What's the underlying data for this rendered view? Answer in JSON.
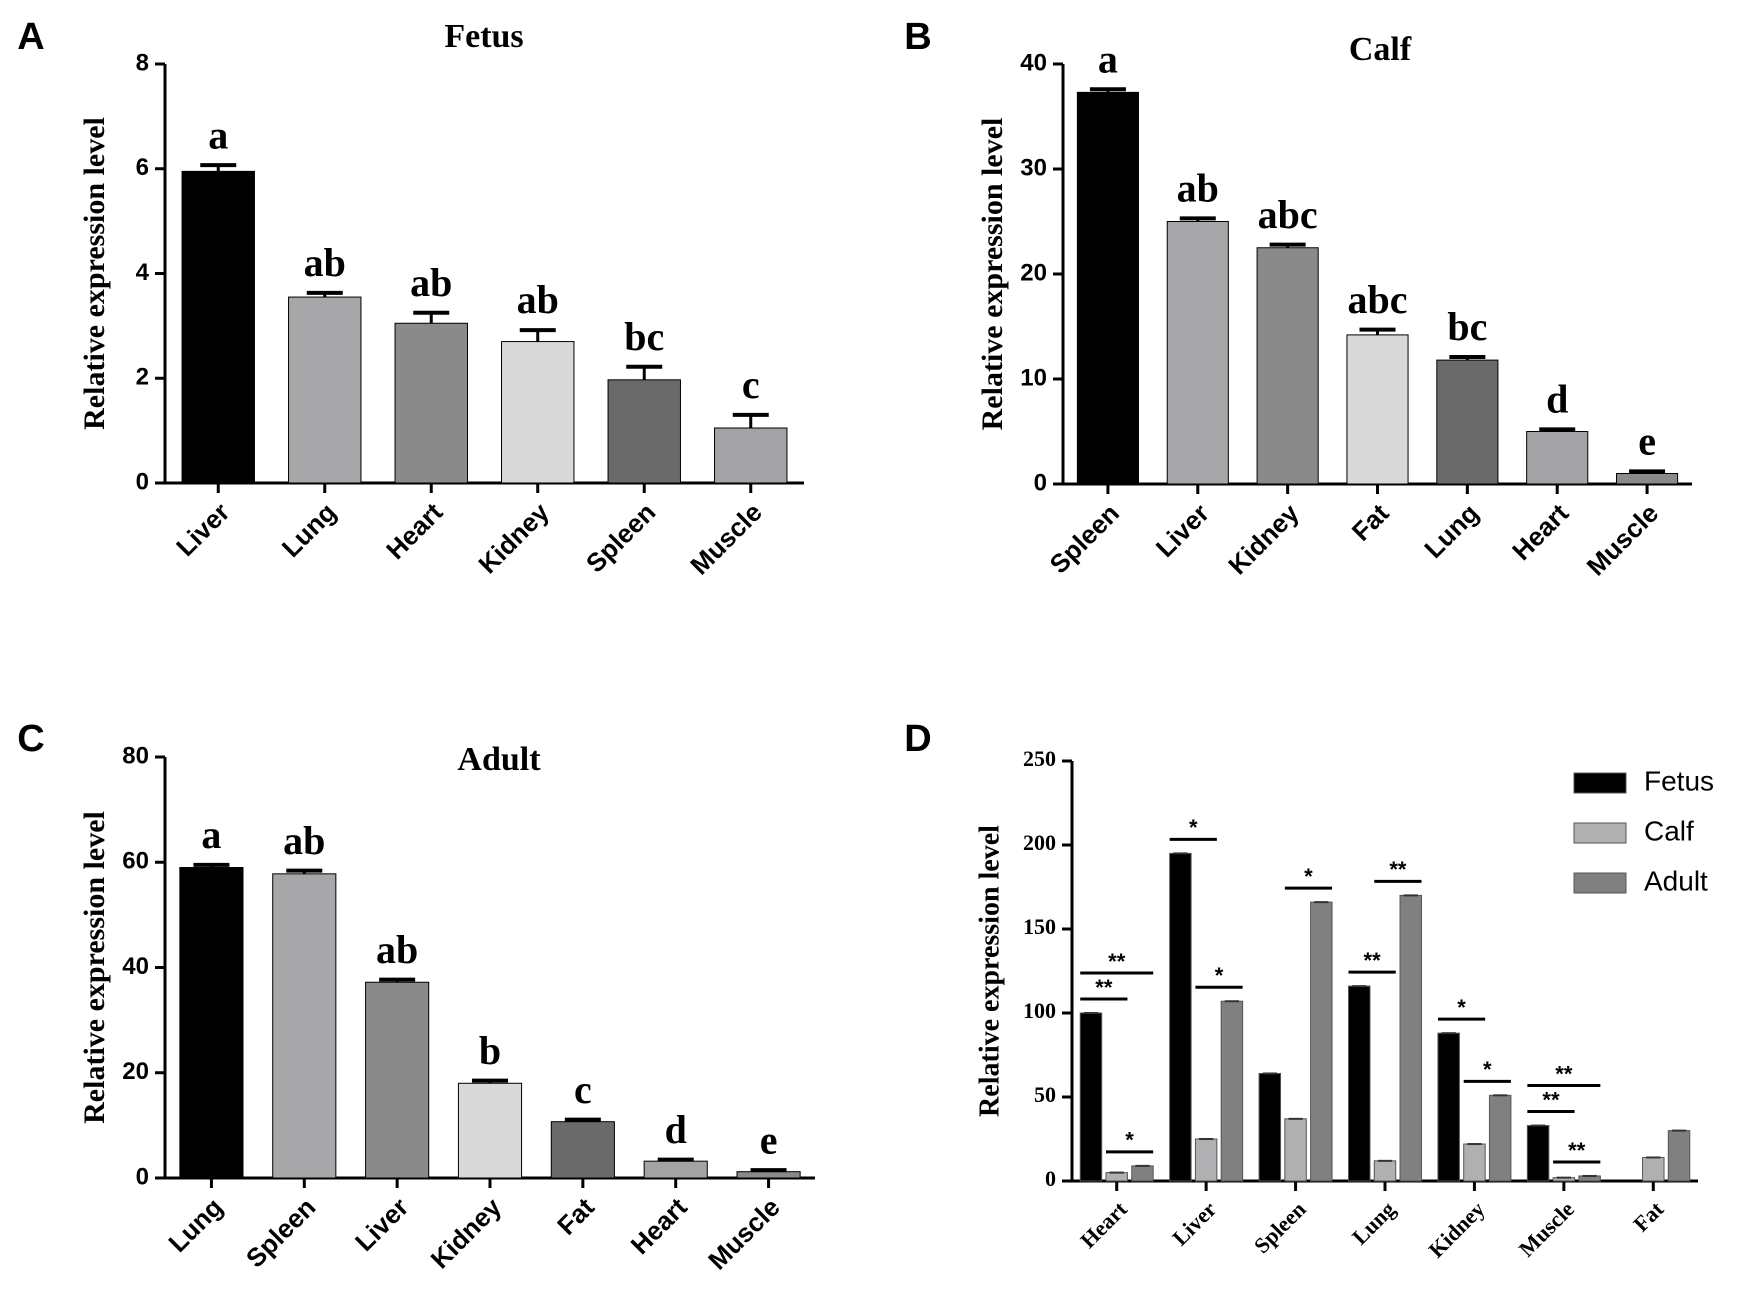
{
  "chart_data": [
    {
      "type": "bar",
      "panel": "A",
      "title": "Fetus",
      "ylabel": "Relative expression level",
      "categories": [
        "Liver",
        "Lung",
        "Heart",
        "Kidney",
        "Spleen",
        "Muscle"
      ],
      "values": [
        5.95,
        3.55,
        3.05,
        2.7,
        1.97,
        1.05
      ],
      "errors": [
        0.12,
        0.08,
        0.2,
        0.22,
        0.25,
        0.25
      ],
      "letters": [
        "a",
        "ab",
        "ab",
        "ab",
        "bc",
        "c"
      ],
      "colors": [
        "#000000",
        "#a7a7aa",
        "#8a8a8a",
        "#d9d9d9",
        "#6a6a6a",
        "#a3a3a6"
      ],
      "ylim": [
        0,
        8
      ],
      "yticks": [
        0,
        2,
        4,
        6,
        8
      ]
    },
    {
      "type": "bar",
      "panel": "B",
      "title": "Calf",
      "ylabel": "Relative expression level",
      "categories": [
        "Spleen",
        "Liver",
        "Kidney",
        "Fat",
        "Lung",
        "Heart",
        "Muscle"
      ],
      "values": [
        37.3,
        25,
        22.5,
        14.2,
        11.8,
        5,
        1
      ],
      "errors": [
        0.3,
        0.3,
        0.3,
        0.5,
        0.3,
        0.2,
        0.2
      ],
      "letters": [
        "a",
        "ab",
        "abc",
        "abc",
        "bc",
        "d",
        "e"
      ],
      "colors": [
        "#000000",
        "#a7a7aa",
        "#8a8a8a",
        "#d9d9d9",
        "#6a6a6a",
        "#a3a3a6",
        "#8a8a8a"
      ],
      "ylim": [
        0,
        40
      ],
      "yticks": [
        0,
        10,
        20,
        30,
        40
      ]
    },
    {
      "type": "bar",
      "panel": "C",
      "title": "Adult",
      "ylabel": "Relative expression level",
      "categories": [
        "Lung",
        "Spleen",
        "Liver",
        "Kidney",
        "Fat",
        "Heart",
        "Muscle"
      ],
      "values": [
        59,
        57.8,
        37.2,
        18,
        10.7,
        3.2,
        1.2
      ],
      "errors": [
        0.5,
        0.6,
        0.5,
        0.5,
        0.4,
        0.3,
        0.3
      ],
      "letters": [
        "a",
        "ab",
        "ab",
        "b",
        "c",
        "d",
        "e"
      ],
      "colors": [
        "#000000",
        "#a7a7aa",
        "#8a8a8a",
        "#d9d9d9",
        "#6a6a6a",
        "#a3a3a6",
        "#8a8a8a"
      ],
      "ylim": [
        0,
        80
      ],
      "yticks": [
        0,
        20,
        40,
        60,
        80
      ]
    },
    {
      "type": "grouped_bar",
      "panel": "D",
      "ylabel": "Relative expression level",
      "categories": [
        "Heart",
        "Liver",
        "Spleen",
        "Lung",
        "Kidney",
        "Muscle",
        "Fat"
      ],
      "series": [
        {
          "name": "Fetus",
          "color": "#000000",
          "values": [
            100,
            195,
            64,
            116,
            88,
            33,
            null
          ]
        },
        {
          "name": "Calf",
          "color": "#b0b0b3",
          "values": [
            5,
            25,
            37,
            12,
            22,
            2,
            14
          ]
        },
        {
          "name": "Adult",
          "color": "#808080",
          "values": [
            9,
            107,
            166,
            170,
            51,
            3,
            30
          ]
        }
      ],
      "significance": [
        {
          "category": 0,
          "pair": [
            0,
            1
          ],
          "label": "**"
        },
        {
          "category": 0,
          "pair": [
            0,
            2
          ],
          "label": "**"
        },
        {
          "category": 0,
          "pair": [
            1,
            2
          ],
          "label": "*"
        },
        {
          "category": 1,
          "pair": [
            0,
            1
          ],
          "label": "*"
        },
        {
          "category": 1,
          "pair": [
            1,
            2
          ],
          "label": "*"
        },
        {
          "category": 2,
          "pair": [
            1,
            2
          ],
          "label": "*"
        },
        {
          "category": 3,
          "pair": [
            0,
            1
          ],
          "label": "**"
        },
        {
          "category": 3,
          "pair": [
            1,
            2
          ],
          "label": "**"
        },
        {
          "category": 4,
          "pair": [
            0,
            1
          ],
          "label": "*"
        },
        {
          "category": 4,
          "pair": [
            1,
            2
          ],
          "label": "*"
        },
        {
          "category": 5,
          "pair": [
            0,
            1
          ],
          "label": "**"
        },
        {
          "category": 5,
          "pair": [
            0,
            2
          ],
          "label": "**"
        },
        {
          "category": 5,
          "pair": [
            1,
            2
          ],
          "label": "**"
        }
      ],
      "legend": "upper right",
      "ylim": [
        0,
        250
      ],
      "yticks": [
        0,
        50,
        100,
        150,
        200,
        250
      ]
    }
  ]
}
